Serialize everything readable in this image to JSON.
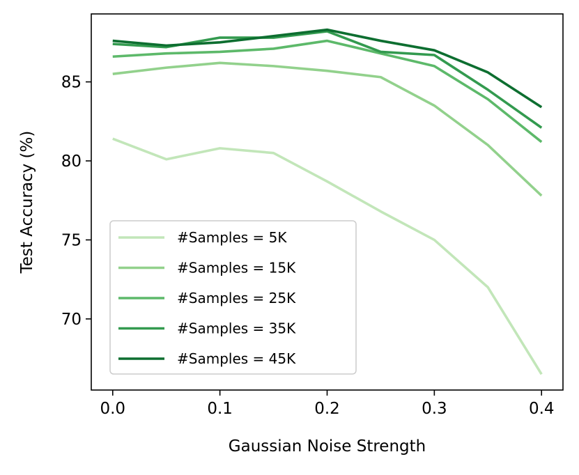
{
  "chart_data": {
    "type": "line",
    "title": "",
    "xlabel": "Gaussian Noise Strength",
    "ylabel": "Test Accuracy (%)",
    "xlim": [
      -0.02,
      0.42
    ],
    "ylim": [
      65.5,
      89.3
    ],
    "xticks": [
      0.0,
      0.1,
      0.2,
      0.3,
      0.4
    ],
    "xtick_labels": [
      "0.0",
      "0.1",
      "0.2",
      "0.3",
      "0.4"
    ],
    "yticks": [
      70,
      75,
      80,
      85
    ],
    "ytick_labels": [
      "70",
      "75",
      "80",
      "85"
    ],
    "grid": false,
    "legend_position": "lower-left",
    "x": [
      0.0,
      0.05,
      0.1,
      0.15,
      0.2,
      0.25,
      0.3,
      0.35,
      0.4
    ],
    "series": [
      {
        "name": "#Samples = 5K",
        "color": "#c2e6b9",
        "values": [
          81.4,
          80.1,
          80.8,
          80.5,
          78.7,
          76.8,
          75.0,
          72.0,
          66.5
        ]
      },
      {
        "name": "#Samples = 15K",
        "color": "#92d18c",
        "values": [
          85.5,
          85.9,
          86.2,
          86.0,
          85.7,
          85.3,
          83.5,
          81.0,
          77.8
        ]
      },
      {
        "name": "#Samples = 25K",
        "color": "#5db96a",
        "values": [
          86.6,
          86.8,
          86.9,
          87.1,
          87.6,
          86.8,
          86.0,
          83.9,
          81.2
        ]
      },
      {
        "name": "#Samples = 35K",
        "color": "#339a4f",
        "values": [
          87.4,
          87.2,
          87.8,
          87.8,
          88.2,
          86.9,
          86.7,
          84.5,
          82.1
        ]
      },
      {
        "name": "#Samples = 45K",
        "color": "#0d6e30",
        "values": [
          87.6,
          87.3,
          87.5,
          87.9,
          88.3,
          87.6,
          87.0,
          85.6,
          83.4
        ]
      }
    ]
  }
}
